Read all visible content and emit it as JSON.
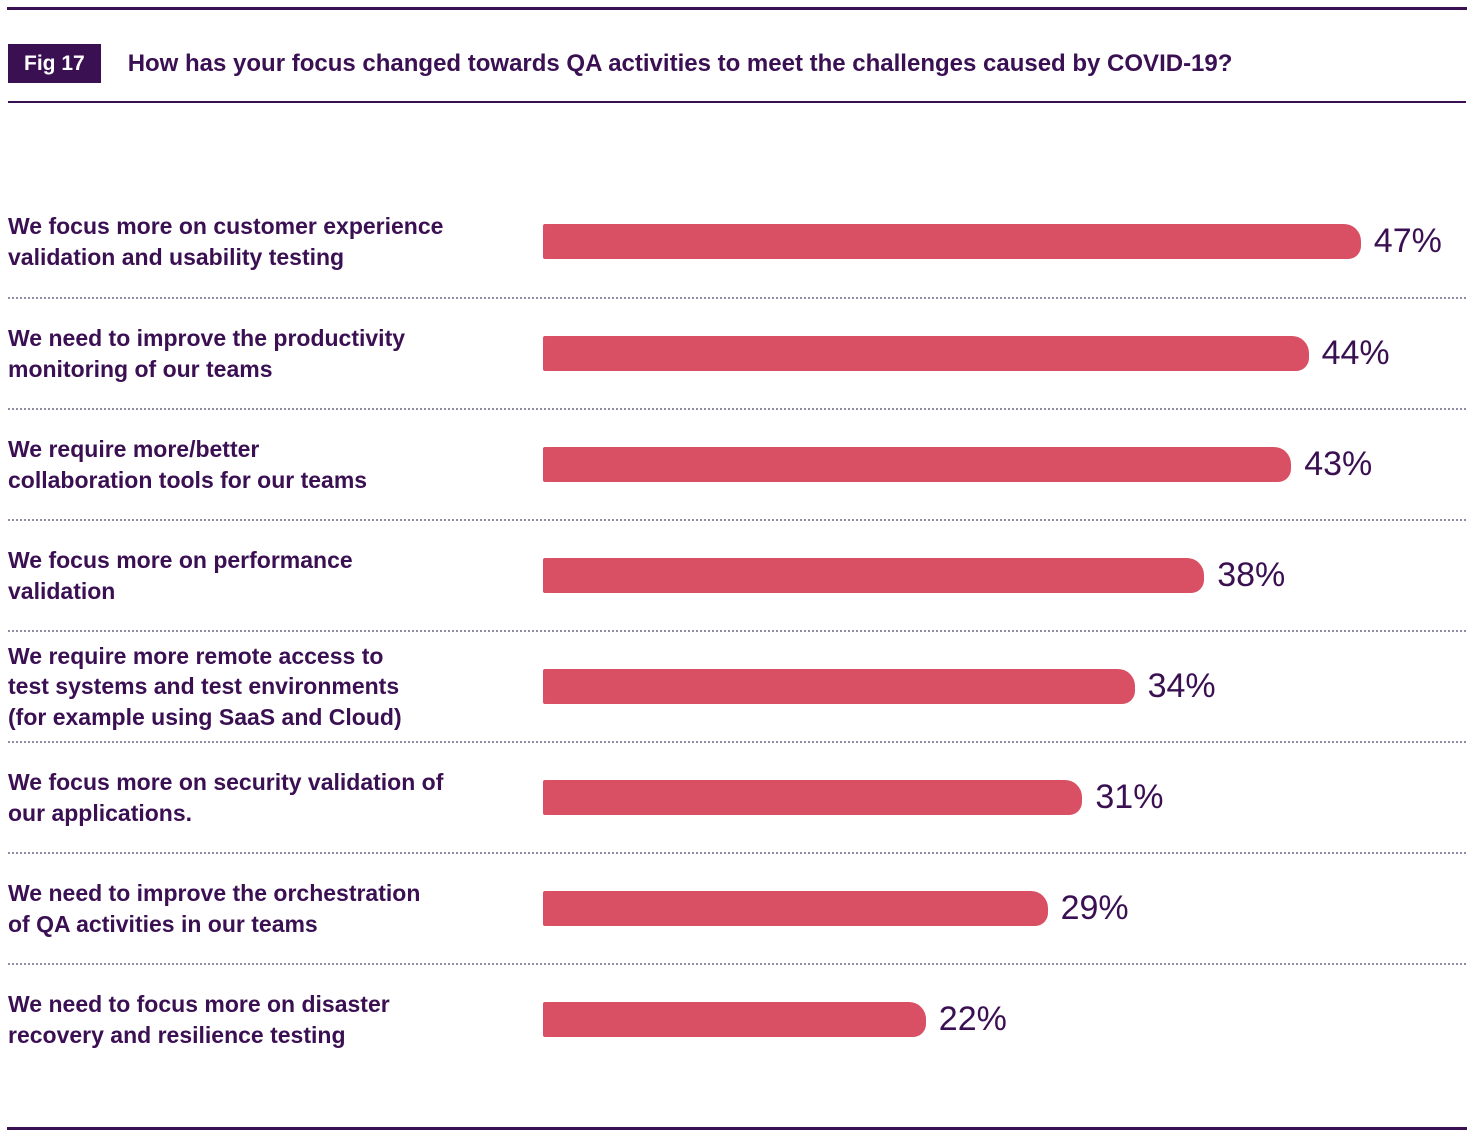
{
  "page": {
    "badge": "Fig 17",
    "title": "How has your focus changed towards QA activities to meet the challenges caused by COVID-19?"
  },
  "colors": {
    "purple": "#3b1053",
    "bar": "#d94f63",
    "separator": "#938aa6"
  },
  "chart_data": {
    "type": "bar",
    "orientation": "horizontal",
    "title": "How has your focus changed towards QA activities to meet the challenges caused by COVID-19?",
    "unit": "%",
    "xlim": [
      0,
      50
    ],
    "grid": false,
    "legend": null,
    "bar_color": "#d94f63",
    "categories": [
      "We focus more on customer experience validation and usability testing",
      "We need to improve the productivity monitoring of our teams",
      "We require more/better collaboration tools for our teams",
      "We focus more on performance validation",
      "We require more remote access to test systems and test environments (for example using SaaS and Cloud)",
      "We focus more on security validation of our applications.",
      "We need to improve the orchestration of QA activities in our teams",
      "We need to focus more on disaster recovery and resilience testing"
    ],
    "values": [
      47,
      44,
      43,
      38,
      34,
      31,
      29,
      22
    ],
    "value_labels": [
      "47%",
      "44%",
      "43%",
      "38%",
      "34%",
      "31%",
      "29%",
      "22%"
    ],
    "label_lines": [
      [
        "We focus more on customer experience",
        "validation and usability testing"
      ],
      [
        "We need to improve the productivity",
        "monitoring of our teams"
      ],
      [
        "We require more/better",
        "collaboration tools for our teams"
      ],
      [
        "We focus more on performance",
        "validation"
      ],
      [
        "We require more remote access to",
        "test systems and test environments",
        "(for example using SaaS and Cloud)"
      ],
      [
        "We focus more on security validation of",
        "our applications."
      ],
      [
        "We need to improve the orchestration",
        "of QA activities in our teams"
      ],
      [
        "We need to focus more on disaster",
        "recovery and resilience testing"
      ]
    ]
  }
}
